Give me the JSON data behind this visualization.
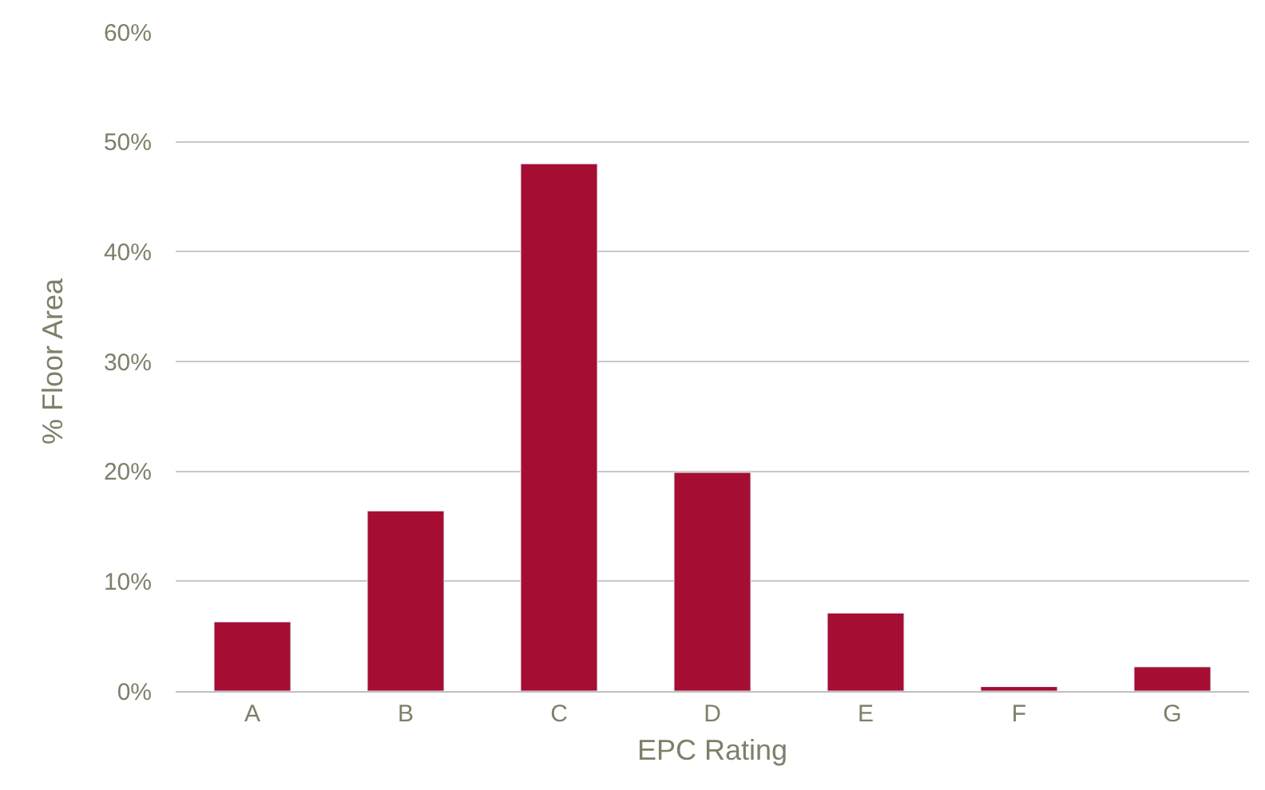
{
  "chart_data": {
    "type": "bar",
    "xlabel": "EPC Rating",
    "ylabel": "% Floor Area",
    "categories": [
      "A",
      "B",
      "C",
      "D",
      "E",
      "F",
      "G"
    ],
    "values": [
      6.3,
      16.4,
      48.0,
      19.9,
      7.1,
      0.4,
      2.2
    ],
    "color": "#a50d32",
    "ylim": [
      0,
      60
    ],
    "yticks": [
      {
        "value": 0,
        "label": "0%"
      },
      {
        "value": 10,
        "label": "10%"
      },
      {
        "value": 20,
        "label": "20%"
      },
      {
        "value": 30,
        "label": "30%"
      },
      {
        "value": 40,
        "label": "40%"
      },
      {
        "value": 50,
        "label": "50%"
      },
      {
        "value": 60,
        "label": "60%"
      }
    ],
    "grid": "y",
    "legend": false
  }
}
